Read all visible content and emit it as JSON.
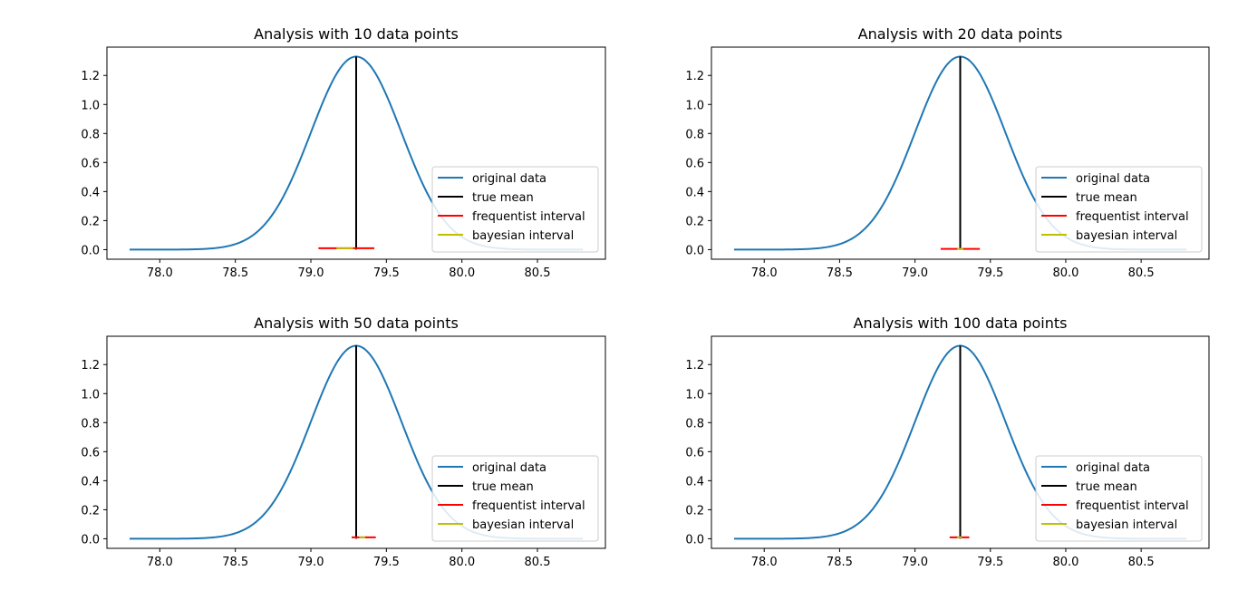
{
  "chart_data": [
    {
      "type": "line",
      "title": "Analysis with 10 data points",
      "xlabel": "",
      "ylabel": "",
      "xlim": [
        77.65,
        80.95
      ],
      "ylim": [
        -0.066,
        1.395
      ],
      "xticks": [
        "78.0",
        "78.5",
        "79.0",
        "79.5",
        "80.0",
        "80.5"
      ],
      "yticks": [
        "0.0",
        "0.2",
        "0.4",
        "0.6",
        "0.8",
        "1.0",
        "1.2"
      ],
      "grid": false,
      "legend_position": "lower-right",
      "legend": [
        "original data",
        "true mean",
        "frequentist interval",
        "bayesian interval"
      ],
      "series": [
        {
          "name": "original data",
          "kind": "normal-pdf",
          "mean": 79.3,
          "std": 0.3,
          "x_range": [
            77.8,
            80.8
          ],
          "color": "#1f77b4"
        },
        {
          "name": "true mean",
          "kind": "vertical",
          "x": 79.3,
          "y_range": [
            0,
            1.33
          ],
          "color": "#000000"
        },
        {
          "name": "frequentist interval",
          "kind": "horizontal",
          "x_range": [
            79.05,
            79.42
          ],
          "y": 0.01,
          "color": "#ff0000"
        },
        {
          "name": "bayesian interval",
          "kind": "horizontal",
          "x_range": [
            79.17,
            79.28
          ],
          "y": 0.01,
          "color": "#bfbf00"
        }
      ]
    },
    {
      "type": "line",
      "title": "Analysis with 20 data points",
      "xlabel": "",
      "ylabel": "",
      "xlim": [
        77.65,
        80.95
      ],
      "ylim": [
        -0.066,
        1.395
      ],
      "xticks": [
        "78.0",
        "78.5",
        "79.0",
        "79.5",
        "80.0",
        "80.5"
      ],
      "yticks": [
        "0.0",
        "0.2",
        "0.4",
        "0.6",
        "0.8",
        "1.0",
        "1.2"
      ],
      "grid": false,
      "legend_position": "lower-right",
      "legend": [
        "original data",
        "true mean",
        "frequentist interval",
        "bayesian interval"
      ],
      "series": [
        {
          "name": "original data",
          "kind": "normal-pdf",
          "mean": 79.3,
          "std": 0.3,
          "x_range": [
            77.8,
            80.8
          ],
          "color": "#1f77b4"
        },
        {
          "name": "true mean",
          "kind": "vertical",
          "x": 79.3,
          "y_range": [
            0,
            1.33
          ],
          "color": "#000000"
        },
        {
          "name": "frequentist interval",
          "kind": "horizontal",
          "x_range": [
            79.17,
            79.43
          ],
          "y": 0.005,
          "color": "#ff0000"
        },
        {
          "name": "bayesian interval",
          "kind": "horizontal",
          "x_range": [
            79.28,
            79.32
          ],
          "y": 0.005,
          "color": "#bfbf00"
        }
      ]
    },
    {
      "type": "line",
      "title": "Analysis with 50 data points",
      "xlabel": "",
      "ylabel": "",
      "xlim": [
        77.65,
        80.95
      ],
      "ylim": [
        -0.066,
        1.395
      ],
      "xticks": [
        "78.0",
        "78.5",
        "79.0",
        "79.5",
        "80.0",
        "80.5"
      ],
      "yticks": [
        "0.0",
        "0.2",
        "0.4",
        "0.6",
        "0.8",
        "1.0",
        "1.2"
      ],
      "grid": false,
      "legend_position": "lower-right",
      "legend": [
        "original data",
        "true mean",
        "frequentist interval",
        "bayesian interval"
      ],
      "series": [
        {
          "name": "original data",
          "kind": "normal-pdf",
          "mean": 79.3,
          "std": 0.3,
          "x_range": [
            77.8,
            80.8
          ],
          "color": "#1f77b4"
        },
        {
          "name": "true mean",
          "kind": "vertical",
          "x": 79.3,
          "y_range": [
            0,
            1.33
          ],
          "color": "#000000"
        },
        {
          "name": "frequentist interval",
          "kind": "horizontal",
          "x_range": [
            79.27,
            79.43
          ],
          "y": 0.01,
          "color": "#ff0000"
        },
        {
          "name": "bayesian interval",
          "kind": "horizontal",
          "x_range": [
            79.32,
            79.36
          ],
          "y": 0.01,
          "color": "#bfbf00"
        }
      ]
    },
    {
      "type": "line",
      "title": "Analysis with 100 data points",
      "xlabel": "",
      "ylabel": "",
      "xlim": [
        77.65,
        80.95
      ],
      "ylim": [
        -0.066,
        1.395
      ],
      "xticks": [
        "78.0",
        "78.5",
        "79.0",
        "79.5",
        "80.0",
        "80.5"
      ],
      "yticks": [
        "0.0",
        "0.2",
        "0.4",
        "0.6",
        "0.8",
        "1.0",
        "1.2"
      ],
      "grid": false,
      "legend_position": "lower-right",
      "legend": [
        "original data",
        "true mean",
        "frequentist interval",
        "bayesian interval"
      ],
      "series": [
        {
          "name": "original data",
          "kind": "normal-pdf",
          "mean": 79.3,
          "std": 0.3,
          "x_range": [
            77.8,
            80.8
          ],
          "color": "#1f77b4"
        },
        {
          "name": "true mean",
          "kind": "vertical",
          "x": 79.3,
          "y_range": [
            0,
            1.33
          ],
          "color": "#000000"
        },
        {
          "name": "frequentist interval",
          "kind": "horizontal",
          "x_range": [
            79.23,
            79.36
          ],
          "y": 0.01,
          "color": "#ff0000"
        },
        {
          "name": "bayesian interval",
          "kind": "horizontal",
          "x_range": [
            79.28,
            79.31
          ],
          "y": 0.01,
          "color": "#bfbf00"
        }
      ]
    }
  ]
}
